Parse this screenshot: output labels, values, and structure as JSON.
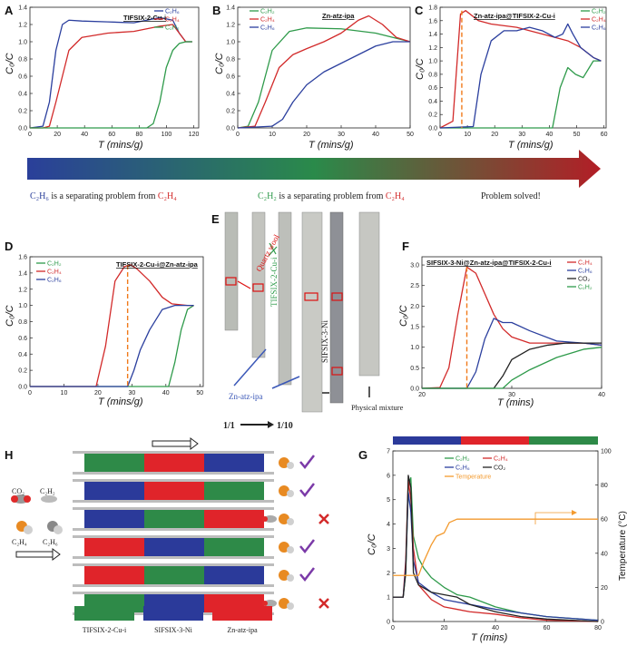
{
  "panels": {
    "A": {
      "letter": "A",
      "title": "TIFSIX-2-Cu-i",
      "ylabel": "C₀/C",
      "xlabel": "T (mins/g)",
      "xticks": [
        "0",
        "20",
        "40",
        "60",
        "80",
        "100",
        "120"
      ],
      "yticks": [
        "0.0",
        "0.2",
        "0.4",
        "0.6",
        "0.8",
        "1.0",
        "1.2",
        "1.4"
      ],
      "legend": [
        {
          "name": "C₂H₆",
          "color": "#2b3f9e"
        },
        {
          "name": "C₂H₄",
          "color": "#d22a2a"
        },
        {
          "name": "C₂H₂",
          "color": "#2e9a4a"
        }
      ]
    },
    "B": {
      "letter": "B",
      "title": "Zn-atz-ipa",
      "ylabel": "C₀/C",
      "xlabel": "T (mins/g)",
      "xticks": [
        "0",
        "10",
        "20",
        "30",
        "40",
        "50"
      ],
      "yticks": [
        "0.0",
        "0.2",
        "0.4",
        "0.6",
        "0.8",
        "1.0",
        "1.2",
        "1.4"
      ],
      "legend": [
        {
          "name": "C₂H₂",
          "color": "#2e9a4a"
        },
        {
          "name": "C₂H₄",
          "color": "#d22a2a"
        },
        {
          "name": "C₂H₆",
          "color": "#2b3f9e"
        }
      ]
    },
    "C": {
      "letter": "C",
      "title": "Zn-atz-ipa@TIFSIX-2-Cu-i",
      "ylabel": "C₀/C",
      "xlabel": "T (mins/g)",
      "xticks": [
        "0",
        "10",
        "20",
        "30",
        "40",
        "50",
        "60"
      ],
      "yticks": [
        "0.0",
        "0.2",
        "0.4",
        "0.6",
        "0.8",
        "1.0",
        "1.2",
        "1.4",
        "1.6",
        "1.8"
      ],
      "legend": [
        {
          "name": "C₂H₂",
          "color": "#2e9a4a"
        },
        {
          "name": "C₂H₄",
          "color": "#d22a2a"
        },
        {
          "name": "C₂H₆",
          "color": "#2b3f9e"
        }
      ]
    },
    "D": {
      "letter": "D",
      "title": "TIFSIX-2-Cu-i@Zn-atz-ipa",
      "ylabel": "C₀/C",
      "xlabel": "T (mins/g)",
      "xticks": [
        "0",
        "10",
        "20",
        "30",
        "40",
        "50"
      ],
      "yticks": [
        "0.0",
        "0.2",
        "0.4",
        "0.6",
        "0.8",
        "1.0",
        "1.2",
        "1.4",
        "1.6"
      ],
      "legend": [
        {
          "name": "C₂H₂",
          "color": "#2e9a4a"
        },
        {
          "name": "C₂H₄",
          "color": "#d22a2a"
        },
        {
          "name": "C₂H₆",
          "color": "#2b3f9e"
        }
      ]
    },
    "E": {
      "letter": "E",
      "labels": {
        "quartz": "Quartz wool",
        "tifsix": "TIFSIX-2-Cu-i",
        "sifsix": "SIFSIX-3-Ni",
        "znatz": "Zn-atz-ipa",
        "physical": "Physical mixture",
        "r11": "1/1",
        "r110": "1/10"
      }
    },
    "F": {
      "letter": "F",
      "title": "SIFSIX-3-Ni@Zn-atz-ipa@TIFSIX-2-Cu-i",
      "ylabel": "C₀/C",
      "xlabel": "T (mins)",
      "xticks": [
        "20",
        "30",
        "40"
      ],
      "yticks": [
        "0.0",
        "0.5",
        "1.0",
        "1.5",
        "2.0",
        "2.5",
        "3.0"
      ],
      "legend": [
        {
          "name": "C₂H₄",
          "color": "#d22a2a"
        },
        {
          "name": "C₂H₆",
          "color": "#2b3f9e"
        },
        {
          "name": "CO₂",
          "color": "#222222"
        },
        {
          "name": "C₂H₂",
          "color": "#2e9a4a"
        }
      ]
    },
    "G": {
      "letter": "G",
      "ylabel": "C₀/C",
      "ylabel2": "Temperature (°C)",
      "xlabel": "T (mins)",
      "xticks": [
        "0",
        "20",
        "40",
        "60",
        "80"
      ],
      "yticks": [
        "0",
        "1",
        "2",
        "3",
        "4",
        "5",
        "6",
        "7"
      ],
      "y2ticks": [
        "0",
        "20",
        "40",
        "60",
        "80",
        "100"
      ],
      "legend": [
        {
          "name": "C₂H₂",
          "color": "#2e9a4a"
        },
        {
          "name": "C₂H₄",
          "color": "#d22a2a"
        },
        {
          "name": "C₂H₆",
          "color": "#2b3f9e"
        },
        {
          "name": "CO₂",
          "color": "#222222"
        },
        {
          "name": "Temperature",
          "color": "#f39a2e"
        }
      ]
    },
    "H": {
      "letter": "H",
      "gases": {
        "co2": "CO₂",
        "c2h2": "C₂H₂",
        "c2h4": "C₂H₄",
        "c2h6": "C₂H₆"
      },
      "legend": [
        {
          "name": "TIFSIX-2-Cu-i",
          "color": "#2e8a48"
        },
        {
          "name": "SIFSIX-3-Ni",
          "color": "#2b3a9a"
        },
        {
          "name": "Zn-atz-ipa",
          "color": "#e0242a"
        }
      ]
    }
  },
  "arrow_captions": {
    "left_a": "C₂H₆",
    "left_b": " is a  separating problem from ",
    "left_c": "C₂H₄",
    "mid_a": "C₂H₂",
    "mid_b": " is a separating problem from ",
    "mid_c": "C₂H₄",
    "right": "Problem solved!"
  },
  "chart_data": [
    {
      "id": "A",
      "type": "line",
      "xlim": [
        0,
        130
      ],
      "ylim": [
        0,
        1.4
      ],
      "series": [
        {
          "name": "C₂H₆",
          "x": [
            0,
            10,
            15,
            20,
            25,
            30,
            40,
            60,
            80,
            100,
            110,
            115,
            120,
            125
          ],
          "y": [
            0,
            0.02,
            0.3,
            0.9,
            1.2,
            1.25,
            1.24,
            1.23,
            1.22,
            1.28,
            1.25,
            1.1,
            1.0,
            1.0
          ]
        },
        {
          "name": "C₂H₄",
          "x": [
            0,
            10,
            15,
            20,
            30,
            40,
            60,
            80,
            100,
            110,
            115,
            120,
            125
          ],
          "y": [
            0,
            0,
            0.02,
            0.3,
            0.9,
            1.05,
            1.1,
            1.12,
            1.18,
            1.2,
            1.1,
            1.0,
            1.0
          ]
        },
        {
          "name": "C₂H₂",
          "x": [
            0,
            90,
            95,
            100,
            105,
            110,
            115,
            120,
            125
          ],
          "y": [
            0,
            0,
            0.05,
            0.3,
            0.7,
            0.9,
            0.98,
            1.0,
            1.0
          ]
        }
      ]
    },
    {
      "id": "B",
      "type": "line",
      "xlim": [
        0,
        50
      ],
      "ylim": [
        0,
        1.4
      ],
      "series": [
        {
          "name": "C₂H₂",
          "x": [
            0,
            3,
            6,
            10,
            15,
            20,
            30,
            40,
            45,
            50
          ],
          "y": [
            0,
            0.02,
            0.3,
            0.9,
            1.12,
            1.16,
            1.15,
            1.1,
            1.05,
            1.0
          ]
        },
        {
          "name": "C₂H₄",
          "x": [
            0,
            5,
            8,
            12,
            16,
            20,
            25,
            30,
            35,
            38,
            42,
            46,
            50
          ],
          "y": [
            0,
            0.02,
            0.3,
            0.7,
            0.85,
            0.92,
            1.0,
            1.1,
            1.25,
            1.3,
            1.2,
            1.05,
            1.0
          ]
        },
        {
          "name": "C₂H₆",
          "x": [
            0,
            10,
            13,
            16,
            20,
            25,
            30,
            35,
            40,
            45,
            50
          ],
          "y": [
            0,
            0.02,
            0.1,
            0.3,
            0.5,
            0.65,
            0.75,
            0.85,
            0.95,
            1.0,
            1.0
          ]
        }
      ]
    },
    {
      "id": "C",
      "type": "line",
      "xlim": [
        0,
        65
      ],
      "ylim": [
        0,
        1.8
      ],
      "series": [
        {
          "name": "C₂H₂",
          "x": [
            0,
            44,
            47,
            50,
            53,
            56,
            60,
            63
          ],
          "y": [
            0,
            0,
            0.6,
            0.9,
            0.8,
            0.75,
            1.0,
            1.0
          ]
        },
        {
          "name": "C₂H₄",
          "x": [
            0,
            5,
            8,
            10,
            15,
            20,
            30,
            40,
            50,
            55,
            60,
            63
          ],
          "y": [
            0,
            0.1,
            1.7,
            1.75,
            1.6,
            1.55,
            1.5,
            1.4,
            1.3,
            1.2,
            1.05,
            1.0
          ]
        },
        {
          "name": "C₂H₆",
          "x": [
            0,
            13,
            16,
            20,
            25,
            30,
            35,
            40,
            45,
            48,
            50,
            52,
            55,
            60,
            63
          ],
          "y": [
            0,
            0.02,
            0.8,
            1.3,
            1.45,
            1.45,
            1.5,
            1.45,
            1.35,
            1.4,
            1.55,
            1.4,
            1.2,
            1.05,
            1.0
          ]
        }
      ]
    },
    {
      "id": "D",
      "type": "line",
      "xlim": [
        0,
        55
      ],
      "ylim": [
        0,
        1.6
      ],
      "series": [
        {
          "name": "C₂H₂",
          "x": [
            0,
            44,
            46,
            48,
            50,
            52
          ],
          "y": [
            0,
            0,
            0.3,
            0.7,
            0.95,
            1.0
          ]
        },
        {
          "name": "C₂H₄",
          "x": [
            0,
            21,
            24,
            27,
            30,
            32,
            34,
            38,
            42,
            45,
            50,
            52
          ],
          "y": [
            0,
            0,
            0.5,
            1.3,
            1.48,
            1.5,
            1.45,
            1.3,
            1.1,
            1.02,
            1.0,
            1.0
          ]
        },
        {
          "name": "C₂H₆",
          "x": [
            0,
            31,
            33,
            35,
            38,
            42,
            46,
            50,
            52
          ],
          "y": [
            0,
            0,
            0.2,
            0.45,
            0.7,
            0.95,
            1.0,
            1.0,
            1.0
          ]
        }
      ]
    },
    {
      "id": "F",
      "type": "line",
      "xlim": [
        20,
        40
      ],
      "ylim": [
        0,
        3.2
      ],
      "series": [
        {
          "name": "C₂H₄",
          "x": [
            20,
            22,
            23,
            24,
            25,
            26,
            27,
            28,
            29,
            30,
            32,
            35,
            38,
            40
          ],
          "y": [
            0,
            0.02,
            0.5,
            1.8,
            2.95,
            2.8,
            2.3,
            1.8,
            1.45,
            1.25,
            1.1,
            1.1,
            1.1,
            1.05
          ]
        },
        {
          "name": "C₂H₆",
          "x": [
            20,
            25,
            26,
            27,
            28,
            29,
            30,
            32,
            35,
            38,
            40
          ],
          "y": [
            0,
            0,
            0.4,
            1.2,
            1.7,
            1.6,
            1.6,
            1.4,
            1.15,
            1.1,
            1.05
          ]
        },
        {
          "name": "CO₂",
          "x": [
            20,
            28,
            29,
            30,
            32,
            34,
            36,
            38,
            40
          ],
          "y": [
            0,
            0,
            0.3,
            0.7,
            0.95,
            1.05,
            1.1,
            1.1,
            1.1
          ]
        },
        {
          "name": "C₂H₂",
          "x": [
            20,
            29,
            30,
            32,
            35,
            38,
            40
          ],
          "y": [
            0,
            0,
            0.2,
            0.45,
            0.75,
            0.95,
            1.0
          ]
        }
      ]
    },
    {
      "id": "G",
      "type": "line",
      "xlim": [
        0,
        80
      ],
      "ylim": [
        0,
        7
      ],
      "y2lim": [
        0,
        100
      ],
      "series": [
        {
          "name": "C₂H₂",
          "x": [
            0,
            4,
            5,
            6,
            7,
            8,
            10,
            12,
            15,
            20,
            25,
            30,
            40,
            50,
            60,
            80
          ],
          "y": [
            1,
            1,
            2,
            5.5,
            5.9,
            3.5,
            2.6,
            2.2,
            1.8,
            1.4,
            1.1,
            1.0,
            0.6,
            0.35,
            0.2,
            0.05
          ]
        },
        {
          "name": "C₂H₄",
          "x": [
            0,
            4,
            5,
            6,
            7,
            8,
            10,
            15,
            20,
            25,
            30,
            40,
            50,
            60,
            80
          ],
          "y": [
            1,
            1,
            2.5,
            5.8,
            5.0,
            3.0,
            1.5,
            0.9,
            0.6,
            0.5,
            0.4,
            0.3,
            0.15,
            0.05,
            0
          ]
        },
        {
          "name": "C₂H₆",
          "x": [
            0,
            4,
            5,
            6,
            7,
            8,
            10,
            15,
            20,
            30,
            40,
            60,
            80
          ],
          "y": [
            1,
            1,
            2.2,
            5.3,
            4.5,
            2.5,
            1.6,
            1.2,
            0.9,
            0.7,
            0.5,
            0.2,
            0.05
          ]
        },
        {
          "name": "CO₂",
          "x": [
            0,
            4,
            5,
            6,
            7,
            8,
            10,
            15,
            20,
            25,
            30,
            40,
            50,
            60,
            80
          ],
          "y": [
            1,
            1,
            2,
            6.0,
            5.5,
            2.0,
            1.5,
            1.2,
            1.1,
            1.0,
            0.7,
            0.4,
            0.2,
            0.1,
            0
          ]
        },
        {
          "name": "Temperature",
          "x": [
            0,
            10,
            12,
            15,
            17,
            20,
            22,
            25,
            30,
            40,
            60,
            80
          ],
          "y": [
            27,
            27,
            35,
            45,
            50,
            52,
            58,
            60,
            60,
            60,
            60,
            60
          ]
        }
      ]
    }
  ]
}
